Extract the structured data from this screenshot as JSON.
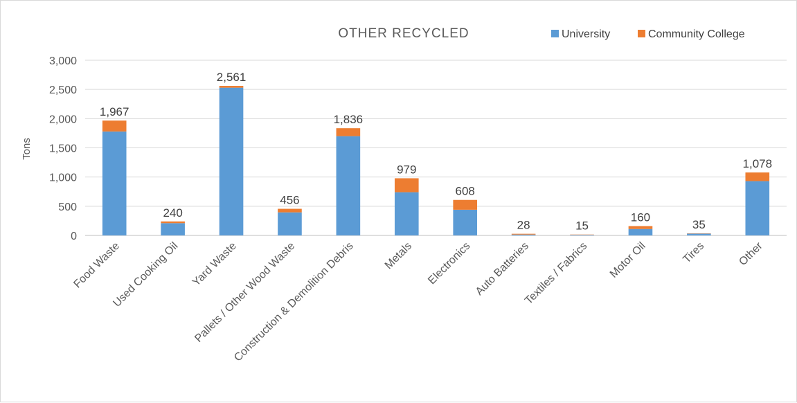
{
  "chart_data": {
    "type": "bar",
    "stacked": true,
    "title": "OTHER RECYCLED",
    "xlabel": "",
    "ylabel": "Tons",
    "ylim": [
      0,
      3000
    ],
    "y_ticks": [
      "0",
      "500",
      "1,000",
      "1,500",
      "2,000",
      "2,500",
      "3,000"
    ],
    "grid": true,
    "legend_position": "top-right",
    "categories": [
      "Food Waste",
      "Used Cooking Oil",
      "Yard Waste",
      "Pallets / Other Wood Waste",
      "Construction & Demolition Debris",
      "Metals",
      "Electronics",
      "Auto Batteries",
      "Textiles / Fabrics",
      "Motor Oil",
      "Tires",
      "Other"
    ],
    "series": [
      {
        "name": "University",
        "color": "#5B9BD5",
        "values": [
          1780,
          210,
          2530,
          395,
          1700,
          740,
          440,
          15,
          10,
          110,
          30,
          930
        ]
      },
      {
        "name": "Community College",
        "color": "#ED7D31",
        "values": [
          187,
          30,
          31,
          61,
          136,
          239,
          168,
          13,
          5,
          50,
          5,
          148
        ]
      }
    ],
    "totals_labels": [
      "1,967",
      "240",
      "2,561",
      "456",
      "1,836",
      "979",
      "608",
      "28",
      "15",
      "160",
      "35",
      "1,078"
    ]
  }
}
